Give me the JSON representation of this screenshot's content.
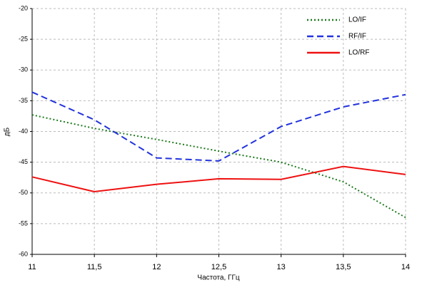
{
  "chart_data": {
    "type": "line",
    "x_label": "Частота, ГГц",
    "y_label": "дБ",
    "x": [
      11,
      11.5,
      12,
      12.5,
      13,
      13.5,
      14
    ],
    "series": [
      {
        "name": "LO/IF",
        "color": "#1e7a1e",
        "line_style": "dotted",
        "values": [
          -37.3,
          -39.5,
          -41.3,
          -43.2,
          -45.0,
          -48.2,
          -54.0
        ]
      },
      {
        "name": "RF/IF",
        "color": "#2233dd",
        "line_style": "dashed",
        "values": [
          -33.6,
          -38.1,
          -44.3,
          -44.8,
          -39.2,
          -36.0,
          -34.0
        ]
      },
      {
        "name": "LO/RF",
        "color": "#ee1111",
        "line_style": "solid",
        "values": [
          -47.4,
          -49.8,
          -48.6,
          -47.7,
          -47.8,
          -45.7,
          -47.0
        ]
      }
    ],
    "xlim": [
      11,
      14
    ],
    "xticks": [
      11,
      {
        "value": 11.5,
        "label": "11,5"
      },
      12,
      {
        "value": 12.5,
        "label": "12,5"
      },
      13,
      {
        "value": 13.5,
        "label": "13,5"
      },
      14
    ],
    "ylim": [
      -60,
      -20
    ],
    "yticks": [
      -60,
      -55,
      -50,
      -45,
      -40,
      -35,
      -30,
      -25,
      -20
    ],
    "grid": true,
    "legend": "upper right"
  }
}
